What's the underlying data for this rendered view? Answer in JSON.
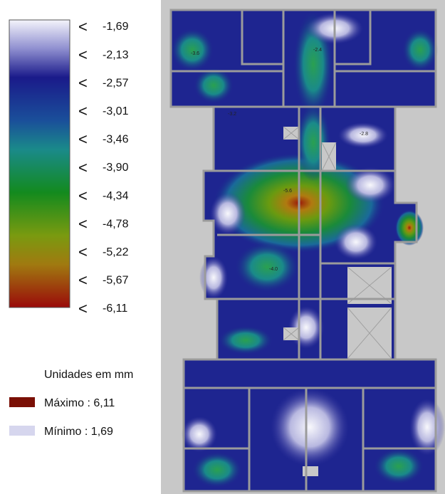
{
  "legend": {
    "marker": "<",
    "items": [
      "-1,69",
      "-2,13",
      "-2,57",
      "-3,01",
      "-3,46",
      "-3,90",
      "-4,34",
      "-4,78",
      "-5,22",
      "-5,67",
      "-6,11"
    ]
  },
  "units_title": "Unidades em mm",
  "maximum": "Máximo : 6,11",
  "minimum": "Mínimo :  1,69",
  "map": {
    "labels": [
      "-5.6",
      "-4.0",
      "-3.6",
      "-2.4",
      "-2.8",
      "-3.2"
    ]
  }
}
